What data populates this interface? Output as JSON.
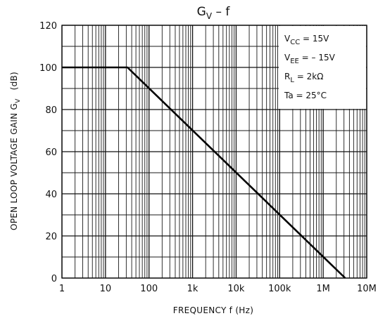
{
  "chart_data": {
    "type": "line",
    "title_main": "G",
    "title_sub": "V",
    "title_rest": " – f",
    "xlabel": "FREQUENCY   f   (Hz)",
    "ylabel": "OPEN LOOP VOLTAGE GAIN   G",
    "ylabel_sub": "V",
    "ylabel_unit": "(dB)",
    "x_scale": "log",
    "xlim": [
      1,
      10000000
    ],
    "ylim": [
      0,
      120
    ],
    "x_ticks": [
      {
        "value": 1,
        "label": "1"
      },
      {
        "value": 10,
        "label": "10"
      },
      {
        "value": 100,
        "label": "100"
      },
      {
        "value": 1000,
        "label": "1k"
      },
      {
        "value": 10000,
        "label": "10k"
      },
      {
        "value": 100000,
        "label": "100k"
      },
      {
        "value": 1000000,
        "label": "1M"
      },
      {
        "value": 10000000,
        "label": "10M"
      }
    ],
    "y_ticks": [
      {
        "value": 0,
        "label": "0"
      },
      {
        "value": 20,
        "label": "20"
      },
      {
        "value": 40,
        "label": "40"
      },
      {
        "value": 60,
        "label": "60"
      },
      {
        "value": 80,
        "label": "80"
      },
      {
        "value": 100,
        "label": "100"
      },
      {
        "value": 120,
        "label": "120"
      }
    ],
    "grid": true,
    "legend_position": "top-right",
    "conditions": [
      {
        "main": "V",
        "sub": "CC",
        "rest": " = 15V"
      },
      {
        "main": "V",
        "sub": "EE",
        "rest": " = – 15V"
      },
      {
        "main": "R",
        "sub": "L",
        "rest": " = 2kΩ"
      },
      {
        "main": "Ta",
        "sub": "",
        "rest": " = 25°C"
      }
    ],
    "series": [
      {
        "x": [
          1,
          32,
          3200000
        ],
        "y": [
          100,
          100,
          0
        ]
      }
    ],
    "colors": {
      "line": "#000000",
      "grid": "#1a1a1a",
      "background": "#ffffff"
    }
  }
}
